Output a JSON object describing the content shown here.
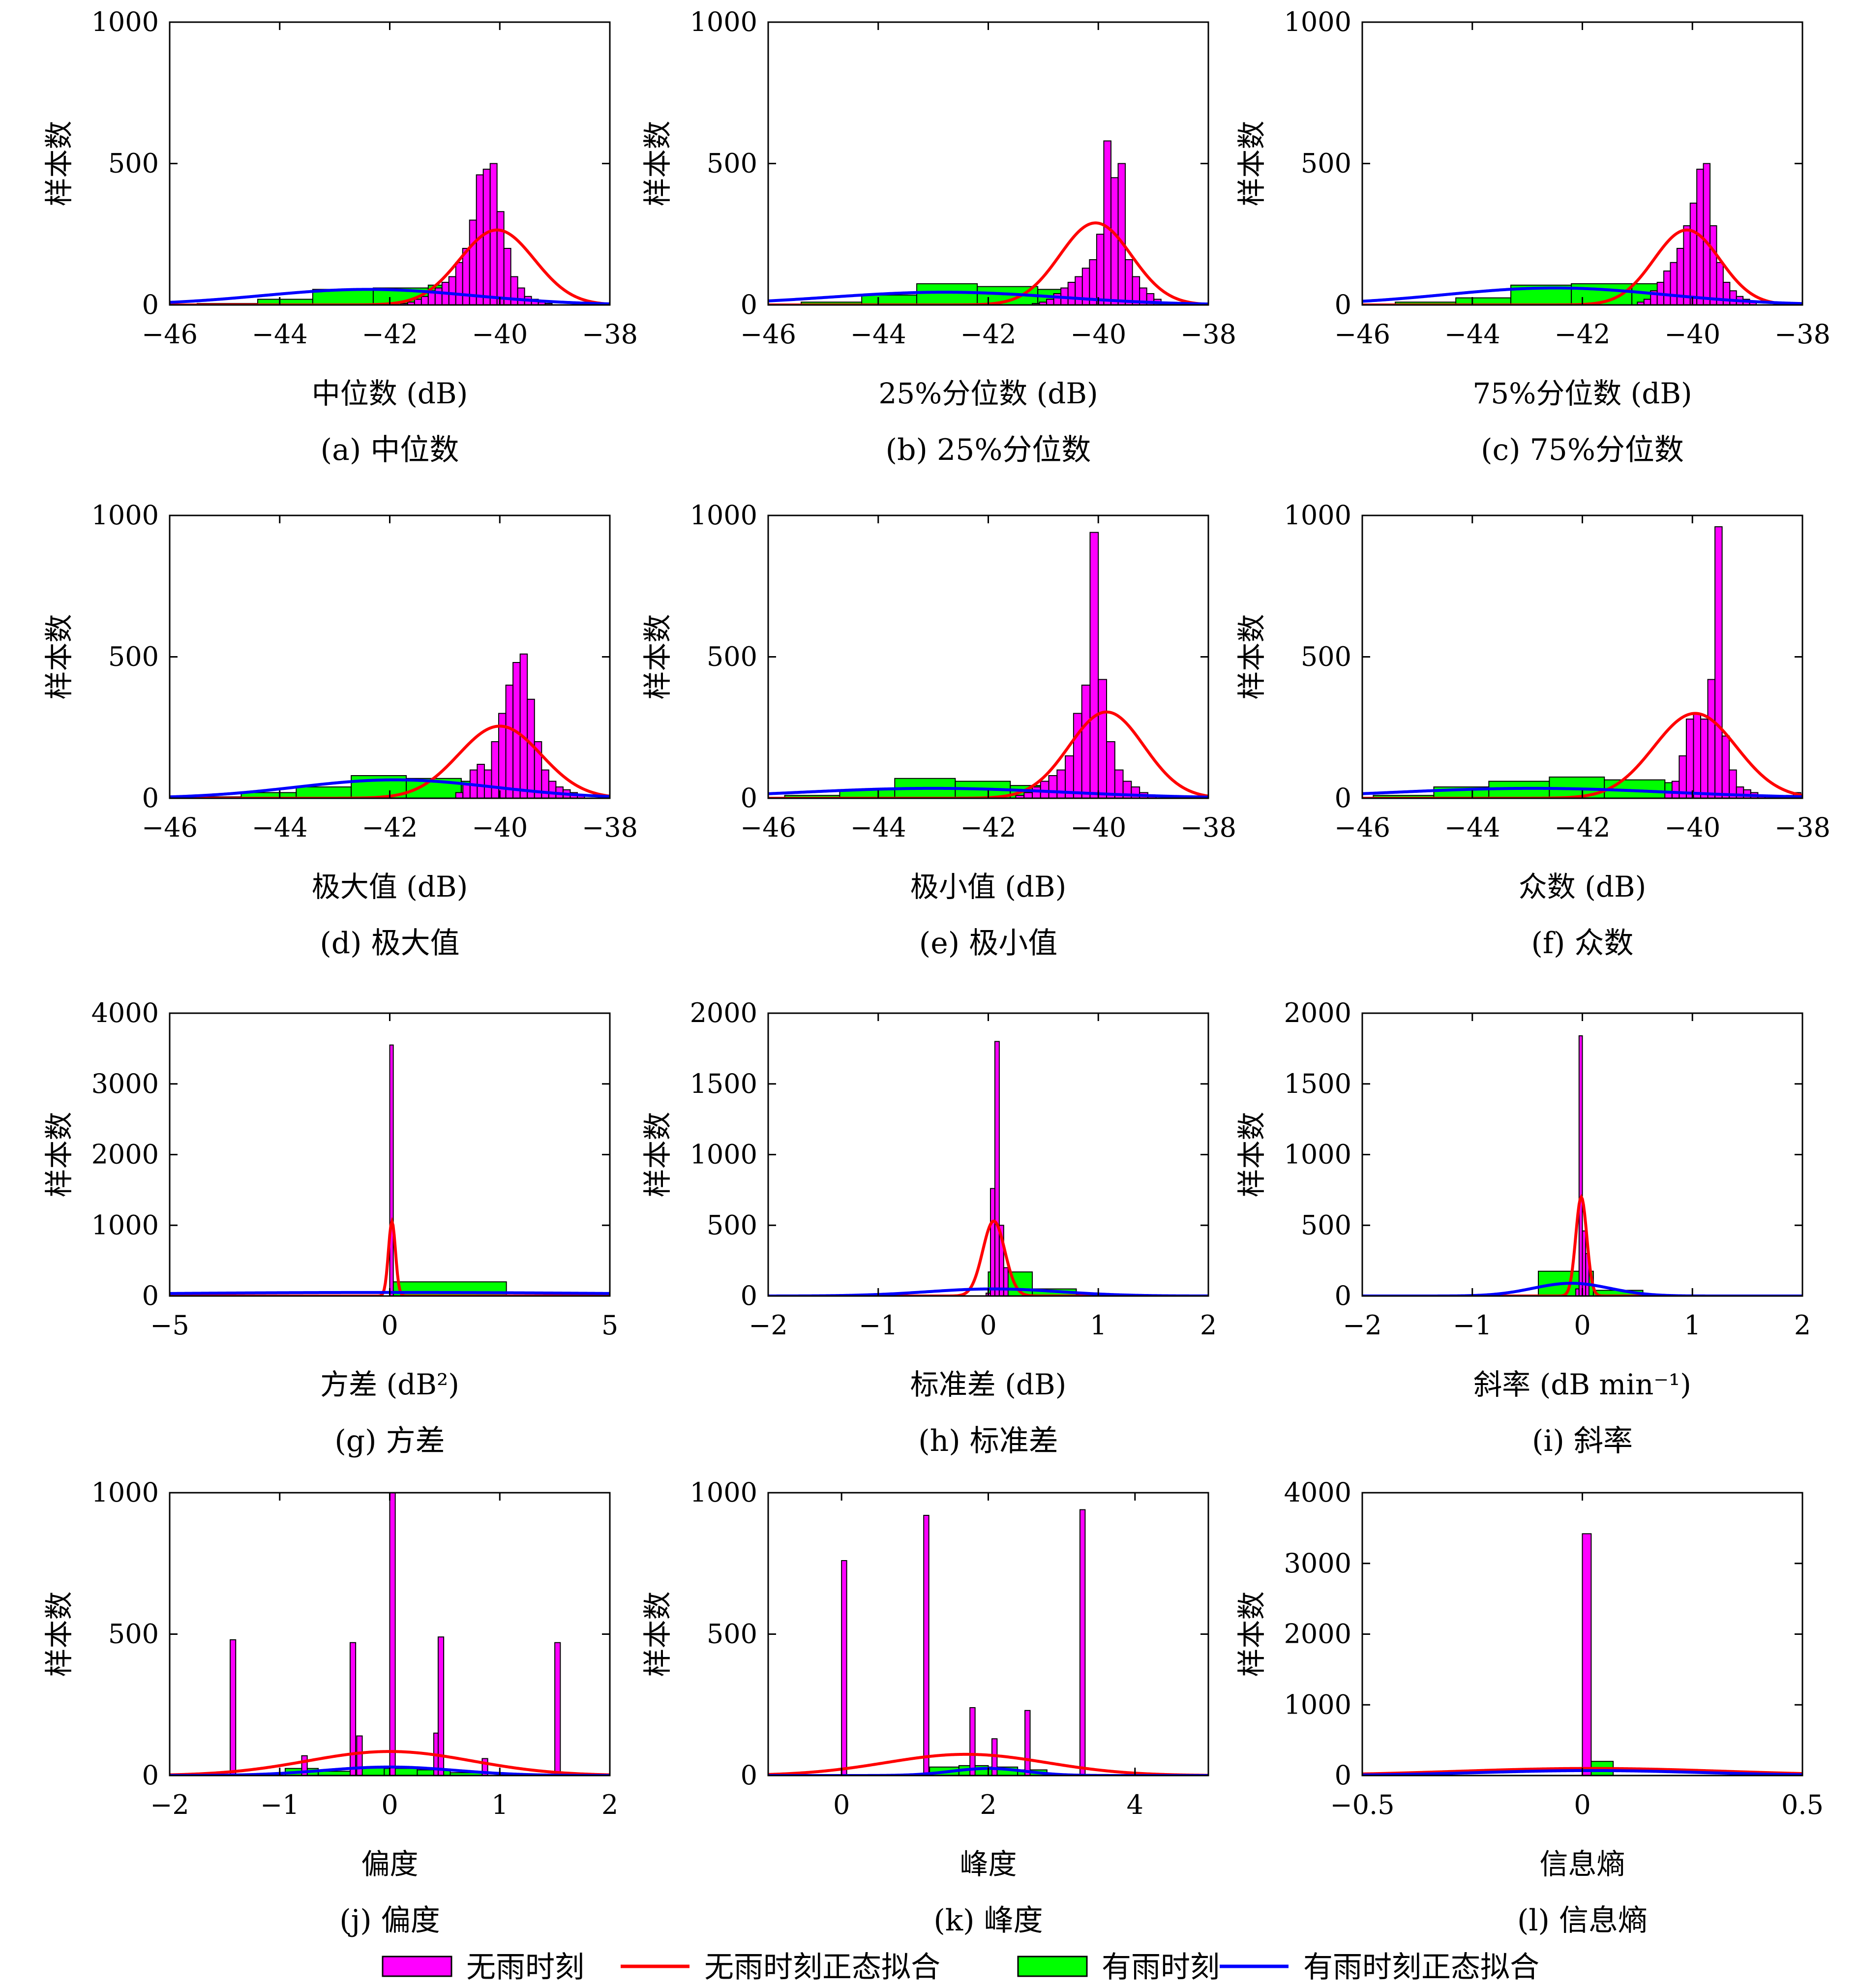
{
  "legend": [
    {
      "kind": "bar",
      "label": "无雨时刻",
      "color": "#FF00FF"
    },
    {
      "kind": "line",
      "label": "无雨时刻正态拟合",
      "color": "#FF0000"
    },
    {
      "kind": "bar",
      "label": "有雨时刻",
      "color": "#00FF00"
    },
    {
      "kind": "line",
      "label": "有雨时刻正态拟合",
      "color": "#0000FF"
    }
  ],
  "colors": {
    "dry_bar": "#FF00FF",
    "dry_fit": "#FF0000",
    "rain_bar": "#00FF00",
    "rain_fit": "#0000FF"
  },
  "chart_data": [
    {
      "type": "bar",
      "panel": "(a) 中位数",
      "xlabel": "中位数 (dB)",
      "ylabel": "样本数",
      "xlim": [
        -46,
        -38
      ],
      "ylim": [
        0,
        1000
      ],
      "xticks": [
        "−46",
        "−44",
        "−42",
        "−40",
        "−38"
      ],
      "yticks": [
        "0",
        "500",
        "1000"
      ],
      "dry_hist": {
        "start": -41.8,
        "width": 0.125,
        "values": [
          5,
          10,
          20,
          30,
          50,
          60,
          80,
          100,
          150,
          200,
          300,
          460,
          480,
          500,
          330,
          200,
          100,
          60,
          30,
          20,
          10,
          5
        ]
      },
      "rain_hist": {
        "edges": [
          -45.5,
          -44.4,
          -43.4,
          -42.3,
          -41.3,
          -40.3,
          -39.3
        ],
        "values": [
          5,
          20,
          55,
          60,
          70,
          10
        ]
      },
      "dry_fit": {
        "mean": -40.05,
        "sd": 0.68,
        "peak": 265
      },
      "rain_fit": {
        "mean": -42.4,
        "sd": 1.9,
        "peak": 55
      }
    },
    {
      "type": "bar",
      "panel": "(b) 25%分位数",
      "xlabel": "25%分位数 (dB)",
      "ylabel": "样本数",
      "xlim": [
        -46,
        -38
      ],
      "ylim": [
        0,
        1000
      ],
      "xticks": [
        "−46",
        "−44",
        "−42",
        "−40",
        "−38"
      ],
      "yticks": [
        "0",
        "500",
        "1000"
      ],
      "dry_hist": {
        "start": -41.2,
        "width": 0.13,
        "values": [
          5,
          10,
          20,
          40,
          60,
          80,
          100,
          130,
          160,
          250,
          580,
          450,
          500,
          160,
          100,
          60,
          40,
          20,
          10,
          5
        ]
      },
      "rain_hist": {
        "edges": [
          -45.4,
          -44.3,
          -43.3,
          -42.2,
          -41.1,
          -40.1,
          -39.1
        ],
        "values": [
          10,
          35,
          75,
          65,
          55,
          15
        ]
      },
      "dry_fit": {
        "mean": -40.05,
        "sd": 0.65,
        "peak": 290
      },
      "rain_fit": {
        "mean": -42.8,
        "sd": 2.1,
        "peak": 45
      }
    },
    {
      "type": "bar",
      "panel": "(c) 75%分位数",
      "xlabel": "75%分位数 (dB)",
      "ylabel": "样本数",
      "xlim": [
        -46,
        -38
      ],
      "ylim": [
        0,
        1000
      ],
      "xticks": [
        "−46",
        "−44",
        "−42",
        "−40",
        "−38"
      ],
      "yticks": [
        "0",
        "500",
        "1000"
      ],
      "dry_hist": {
        "start": -41.0,
        "width": 0.12,
        "values": [
          10,
          20,
          50,
          80,
          120,
          150,
          200,
          280,
          360,
          480,
          500,
          280,
          150,
          80,
          50,
          30,
          20,
          10
        ]
      },
      "rain_hist": {
        "edges": [
          -45.4,
          -44.3,
          -43.3,
          -42.2,
          -41.1,
          -40.1,
          -39.1
        ],
        "values": [
          10,
          25,
          70,
          75,
          75,
          15
        ]
      },
      "dry_fit": {
        "mean": -40.1,
        "sd": 0.6,
        "peak": 265
      },
      "rain_fit": {
        "mean": -42.5,
        "sd": 2.0,
        "peak": 60
      }
    },
    {
      "type": "bar",
      "panel": "(d) 极大值",
      "xlabel": "极大值 (dB)",
      "ylabel": "样本数",
      "xlim": [
        -46,
        -38
      ],
      "ylim": [
        0,
        1000
      ],
      "xticks": [
        "−46",
        "−44",
        "−42",
        "−40",
        "−38"
      ],
      "yticks": [
        "0",
        "500",
        "1000"
      ],
      "dry_hist": {
        "start": -40.8,
        "width": 0.13,
        "values": [
          20,
          50,
          100,
          120,
          100,
          200,
          300,
          400,
          480,
          510,
          350,
          200,
          100,
          60,
          40,
          30,
          20,
          10
        ]
      },
      "rain_hist": {
        "edges": [
          -45.8,
          -44.7,
          -43.7,
          -42.7,
          -41.7,
          -40.7,
          -39.7
        ],
        "values": [
          5,
          20,
          40,
          80,
          70,
          60
        ]
      },
      "dry_fit": {
        "mean": -40.0,
        "sd": 0.75,
        "peak": 255
      },
      "rain_fit": {
        "mean": -41.9,
        "sd": 1.8,
        "peak": 65
      }
    },
    {
      "type": "bar",
      "panel": "(e) 极小值",
      "xlabel": "极小值 (dB)",
      "ylabel": "样本数",
      "xlim": [
        -46,
        -38
      ],
      "ylim": [
        0,
        1000
      ],
      "xticks": [
        "−46",
        "−44",
        "−42",
        "−40",
        "−38"
      ],
      "yticks": [
        "0",
        "500",
        "1000"
      ],
      "dry_hist": {
        "start": -41.5,
        "width": 0.15,
        "values": [
          10,
          20,
          40,
          60,
          80,
          100,
          150,
          300,
          400,
          940,
          420,
          200,
          100,
          60,
          40,
          20,
          10
        ]
      },
      "rain_hist": {
        "edges": [
          -45.7,
          -44.7,
          -43.7,
          -42.6,
          -41.6,
          -40.5,
          -39.5
        ],
        "values": [
          10,
          30,
          70,
          60,
          45,
          10
        ]
      },
      "dry_fit": {
        "mean": -39.85,
        "sd": 0.68,
        "peak": 305
      },
      "rain_fit": {
        "mean": -43.0,
        "sd": 2.4,
        "peak": 35
      }
    },
    {
      "type": "bar",
      "panel": "(f) 众数",
      "xlabel": "众数 (dB)",
      "ylabel": "样本数",
      "xlim": [
        -46,
        -38
      ],
      "ylim": [
        0,
        1000
      ],
      "xticks": [
        "−46",
        "−44",
        "−42",
        "−40",
        "−38"
      ],
      "yticks": [
        "0",
        "500",
        "1000"
      ],
      "dry_hist": {
        "start": -40.5,
        "width": 0.13,
        "values": [
          20,
          60,
          150,
          280,
          300,
          280,
          420,
          960,
          220,
          100,
          40,
          30,
          20,
          10,
          10,
          5,
          5,
          10,
          20,
          10
        ]
      },
      "rain_hist": {
        "edges": [
          -45.8,
          -44.7,
          -43.7,
          -42.6,
          -41.6,
          -40.5,
          -39.5
        ],
        "values": [
          10,
          40,
          60,
          75,
          65,
          55
        ]
      },
      "dry_fit": {
        "mean": -39.95,
        "sd": 0.75,
        "peak": 300
      },
      "rain_fit": {
        "mean": -42.9,
        "sd": 2.5,
        "peak": 35
      }
    },
    {
      "type": "bar",
      "panel": "(g) 方差",
      "xlabel": "方差 (dB²)",
      "ylabel": "样本数",
      "xlim": [
        -5,
        5
      ],
      "ylim": [
        0,
        4000
      ],
      "xticks": [
        "−5",
        "0",
        "5"
      ],
      "yticks": [
        "0",
        "1000",
        "2000",
        "3000",
        "4000"
      ],
      "dry_hist": {
        "start": 0.0,
        "width": 0.08,
        "values": [
          3550
        ]
      },
      "rain_hist": {
        "edges": [
          0.05,
          2.65
        ],
        "values": [
          200
        ]
      },
      "dry_fit": {
        "mean": 0.05,
        "sd": 0.08,
        "peak": 1050
      },
      "rain_fit": {
        "mean": 0.0,
        "sd": 6.0,
        "peak": 50
      }
    },
    {
      "type": "bar",
      "panel": "(h) 标准差",
      "xlabel": "标准差 (dB)",
      "ylabel": "样本数",
      "xlim": [
        -2,
        2
      ],
      "ylim": [
        0,
        2000
      ],
      "xticks": [
        "−2",
        "−1",
        "0",
        "1",
        "2"
      ],
      "yticks": [
        "0",
        "500",
        "1000",
        "1500",
        "2000"
      ],
      "dry_hist": {
        "start": -0.02,
        "width": 0.04,
        "values": [
          20,
          760,
          1800,
          500,
          200
        ]
      },
      "rain_hist": {
        "edges": [
          0.0,
          0.4,
          0.8,
          1.2
        ],
        "values": [
          170,
          50,
          10
        ]
      },
      "dry_fit": {
        "mean": 0.05,
        "sd": 0.1,
        "peak": 530
      },
      "rain_fit": {
        "mean": 0.05,
        "sd": 0.6,
        "peak": 50
      }
    },
    {
      "type": "bar",
      "panel": "(i) 斜率",
      "xlabel": "斜率 (dB min⁻¹)",
      "ylabel": "样本数",
      "xlim": [
        -2,
        2
      ],
      "ylim": [
        0,
        2000
      ],
      "xticks": [
        "−2",
        "−1",
        "0",
        "1",
        "2"
      ],
      "yticks": [
        "0",
        "500",
        "1000",
        "1500",
        "2000"
      ],
      "dry_hist": {
        "start": -0.06,
        "width": 0.03,
        "values": [
          50,
          1840,
          460,
          300
        ]
      },
      "rain_hist": {
        "edges": [
          -0.4,
          0.1,
          0.55
        ],
        "values": [
          175,
          40
        ]
      },
      "dry_fit": {
        "mean": -0.01,
        "sd": 0.05,
        "peak": 700
      },
      "rain_fit": {
        "mean": -0.1,
        "sd": 0.35,
        "peak": 90
      }
    },
    {
      "type": "bar",
      "panel": "(j) 偏度",
      "xlabel": "偏度",
      "ylabel": "样本数",
      "xlim": [
        -2,
        2
      ],
      "ylim": [
        0,
        1000
      ],
      "xticks": [
        "−2",
        "−1",
        "0",
        "1",
        "2"
      ],
      "yticks": [
        "0",
        "500",
        "1000"
      ],
      "dry_hist": {
        "bars": [
          [
            -1.45,
            480
          ],
          [
            -0.8,
            70
          ],
          [
            -0.36,
            470
          ],
          [
            -0.3,
            140
          ],
          [
            0.0,
            1000
          ],
          [
            0.4,
            150
          ],
          [
            0.44,
            490
          ],
          [
            0.84,
            60
          ],
          [
            1.5,
            470
          ]
        ],
        "width": 0.05
      },
      "rain_hist": {
        "edges": [
          -0.95,
          -0.65,
          -0.35,
          -0.05,
          0.25,
          0.55,
          0.85
        ],
        "values": [
          25,
          15,
          30,
          25,
          20,
          10
        ]
      },
      "dry_fit": {
        "mean": 0.0,
        "sd": 0.75,
        "peak": 85
      },
      "rain_fit": {
        "mean": 0.0,
        "sd": 0.6,
        "peak": 30
      }
    },
    {
      "type": "bar",
      "panel": "(k) 峰度",
      "xlabel": "峰度",
      "ylabel": "样本数",
      "xlim": [
        -1,
        5
      ],
      "ylim": [
        0,
        1000
      ],
      "xticks": [
        "0",
        "2",
        "4"
      ],
      "yticks": [
        "0",
        "500",
        "1000"
      ],
      "dry_hist": {
        "bars": [
          [
            0.0,
            760
          ],
          [
            1.12,
            920
          ],
          [
            1.75,
            240
          ],
          [
            2.05,
            130
          ],
          [
            2.5,
            230
          ],
          [
            3.25,
            940
          ]
        ],
        "width": 0.07
      },
      "rain_hist": {
        "edges": [
          1.2,
          1.6,
          2.0,
          2.4,
          2.8
        ],
        "values": [
          30,
          35,
          30,
          20
        ]
      },
      "dry_fit": {
        "mean": 1.7,
        "sd": 1.1,
        "peak": 75
      },
      "rain_fit": {
        "mean": 2.0,
        "sd": 0.5,
        "peak": 25
      }
    },
    {
      "type": "bar",
      "panel": "(l) 信息熵",
      "xlabel": "信息熵",
      "ylabel": "样本数",
      "xlim": [
        -0.5,
        0.5
      ],
      "ylim": [
        0,
        4000
      ],
      "xticks": [
        "−0.5",
        "0",
        "0.5"
      ],
      "yticks": [
        "0",
        "1000",
        "2000",
        "3000",
        "4000"
      ],
      "dry_hist": {
        "start": 0.0,
        "width": 0.02,
        "values": [
          3420
        ]
      },
      "rain_hist": {
        "edges": [
          0.005,
          0.07
        ],
        "values": [
          200
        ]
      },
      "dry_fit": {
        "mean": 0.02,
        "sd": 0.3,
        "peak": 100
      },
      "rain_fit": {
        "mean": 0.02,
        "sd": 0.25,
        "peak": 70
      }
    }
  ]
}
